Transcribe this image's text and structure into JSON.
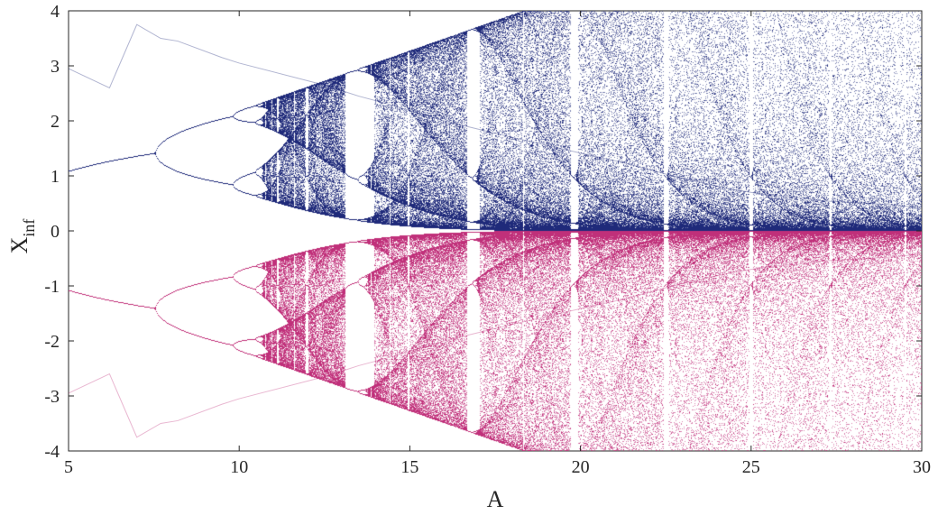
{
  "chart_data": {
    "type": "scatter",
    "title": "",
    "xlabel": "A",
    "ylabel_main": "X",
    "ylabel_sub": "inf",
    "xlim": [
      5,
      30
    ],
    "ylim": [
      -4,
      4
    ],
    "x_ticks": [
      "5",
      "10",
      "15",
      "20",
      "25",
      "30"
    ],
    "y_ticks": [
      "-4",
      "-3",
      "-2",
      "-1",
      "0",
      "1",
      "2",
      "3",
      "4"
    ],
    "grid": false,
    "legend": "none",
    "point_colors": [
      "#1f2a7a",
      "#7a1f7a",
      "#c0307a"
    ],
    "series": [
      {
        "name": "",
        "x": [
          5,
          6.2,
          7,
          7.7,
          8.2,
          9.5,
          10,
          12.5,
          13.5,
          14.4,
          16,
          18,
          20.1,
          21.2,
          23,
          24.5,
          25.5,
          26.5,
          27,
          29,
          30
        ],
        "y": [
          2.95,
          2.6,
          3.75,
          3.5,
          3.45,
          3.15,
          3.05,
          2.65,
          2.45,
          2.3,
          2.0,
          1.7,
          1.4,
          1.25,
          0.95,
          0.75,
          0.65,
          0.6,
          0.55,
          0.48,
          0.42
        ]
      },
      {
        "name": "",
        "x": [
          5,
          6.2,
          7,
          7.7,
          8.2,
          9.5,
          10,
          12.5,
          13.5,
          14.4,
          16,
          18,
          20.1,
          21.2,
          23,
          24.5,
          25.5,
          26.5,
          27,
          29,
          30
        ],
        "y": [
          -2.95,
          -2.6,
          -3.75,
          -3.5,
          -3.45,
          -3.15,
          -3.05,
          -2.65,
          -2.45,
          -2.3,
          -2.0,
          -1.7,
          -1.4,
          -1.25,
          -0.95,
          -0.75,
          -0.65,
          -0.6,
          -0.55,
          -0.48,
          -0.42
        ]
      }
    ]
  }
}
